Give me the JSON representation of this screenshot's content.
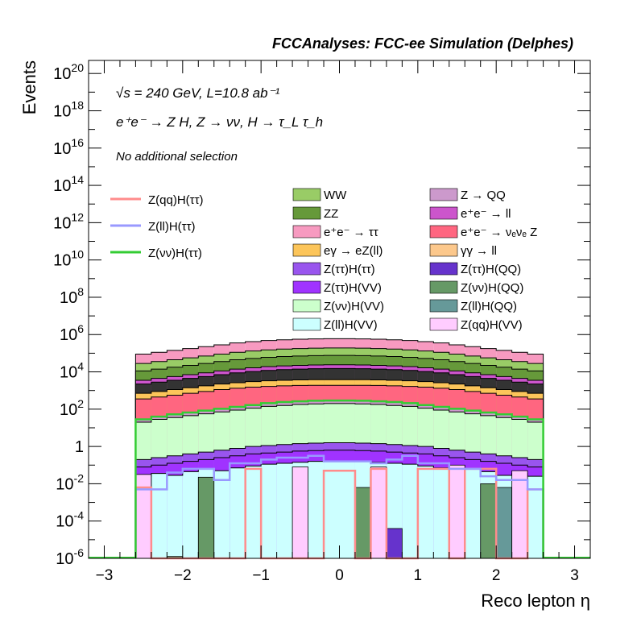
{
  "chart_data": {
    "type": "histogram",
    "title": "FCCAnalyses: FCC-ee Simulation (Delphes)",
    "xlabel": "Reco lepton η",
    "ylabel": "Events",
    "xlim": [
      -3.2,
      3.2
    ],
    "ylim_log10": [
      -6,
      20.7
    ],
    "y_scale": "log",
    "x_ticks": [
      "−3",
      "−2",
      "−1",
      "0",
      "1",
      "2",
      "3"
    ],
    "y_ticks": [
      {
        "base": "10",
        "exp": "20"
      },
      {
        "base": "10",
        "exp": "18"
      },
      {
        "base": "10",
        "exp": "16"
      },
      {
        "base": "10",
        "exp": "14"
      },
      {
        "base": "10",
        "exp": "12"
      },
      {
        "base": "10",
        "exp": "10"
      },
      {
        "base": "10",
        "exp": "8"
      },
      {
        "base": "10",
        "exp": "6"
      },
      {
        "base": "10",
        "exp": "4"
      },
      {
        "base": "10",
        "exp": "2"
      },
      {
        "base": "1",
        "exp": ""
      },
      {
        "base": "10",
        "exp": "-2"
      },
      {
        "base": "10",
        "exp": "-4"
      },
      {
        "base": "10",
        "exp": "-6"
      }
    ],
    "annotations": {
      "energy_lumi": "√s = 240 GeV, L=10.8 ab⁻¹",
      "process": "e⁺e⁻ → Z H, Z → νν, H → τ_L τ_h",
      "selection": "No additional selection"
    },
    "bin_edges_eta": [
      -2.6,
      -2.4,
      -2.2,
      -2.0,
      -1.8,
      -1.6,
      -1.4,
      -1.2,
      -1.0,
      -0.8,
      -0.6,
      -0.4,
      -0.2,
      0.0,
      0.2,
      0.4,
      0.6,
      0.8,
      1.0,
      1.2,
      1.4,
      1.6,
      1.8,
      2.0,
      2.2,
      2.4,
      2.6
    ],
    "stack_totals_log10": [
      [
        4.95,
        5.05,
        5.15,
        5.25,
        5.35,
        5.45,
        5.55,
        5.62,
        5.68,
        5.72,
        5.75,
        5.77,
        5.78,
        5.78,
        5.77,
        5.75,
        5.72,
        5.68,
        5.62,
        5.55,
        5.45,
        5.35,
        5.25,
        5.15,
        5.05,
        4.95
      ],
      [
        4.45,
        4.55,
        4.65,
        4.75,
        4.85,
        4.95,
        5.05,
        5.12,
        5.18,
        5.22,
        5.25,
        5.27,
        5.28,
        5.28,
        5.27,
        5.25,
        5.22,
        5.18,
        5.12,
        5.05,
        4.95,
        4.85,
        4.75,
        4.65,
        4.55,
        4.45
      ],
      [
        4.05,
        4.15,
        4.25,
        4.35,
        4.45,
        4.55,
        4.65,
        4.72,
        4.78,
        4.82,
        4.85,
        4.87,
        4.88,
        4.88,
        4.87,
        4.85,
        4.82,
        4.78,
        4.72,
        4.65,
        4.55,
        4.45,
        4.35,
        4.25,
        4.15,
        4.05
      ],
      [
        3.55,
        3.65,
        3.75,
        3.85,
        3.95,
        4.05,
        4.15,
        4.22,
        4.28,
        4.32,
        4.35,
        4.37,
        4.38,
        4.38,
        4.37,
        4.35,
        4.32,
        4.28,
        4.22,
        4.15,
        4.05,
        3.95,
        3.85,
        3.75,
        3.65,
        3.55
      ],
      [
        3.35,
        3.45,
        3.55,
        3.65,
        3.75,
        3.85,
        3.95,
        4.02,
        4.08,
        4.12,
        4.15,
        4.17,
        4.18,
        4.18,
        4.17,
        4.15,
        4.12,
        4.08,
        4.02,
        3.95,
        3.85,
        3.75,
        3.65,
        3.55,
        3.45,
        3.35
      ],
      [
        2.85,
        2.95,
        3.05,
        3.15,
        3.25,
        3.35,
        3.42,
        3.48,
        3.52,
        3.55,
        3.57,
        3.58,
        3.58,
        3.58,
        3.58,
        3.57,
        3.55,
        3.52,
        3.48,
        3.42,
        3.35,
        3.25,
        3.15,
        3.05,
        2.95,
        2.85
      ],
      [
        2.55,
        2.65,
        2.75,
        2.85,
        2.95,
        3.05,
        3.12,
        3.18,
        3.22,
        3.25,
        3.27,
        3.28,
        3.28,
        3.28,
        3.28,
        3.27,
        3.25,
        3.22,
        3.18,
        3.12,
        3.05,
        2.95,
        2.85,
        2.75,
        2.65,
        2.55
      ],
      [
        1.45,
        1.6,
        1.72,
        1.82,
        1.92,
        2.02,
        2.12,
        2.22,
        2.32,
        2.38,
        2.42,
        2.45,
        2.46,
        2.46,
        2.45,
        2.42,
        2.38,
        2.32,
        2.22,
        2.12,
        2.02,
        1.92,
        1.82,
        1.72,
        1.6,
        1.45
      ],
      [
        1.3,
        1.45,
        1.55,
        1.65,
        1.75,
        1.85,
        1.95,
        2.05,
        2.15,
        2.2,
        2.25,
        2.28,
        2.3,
        2.3,
        2.28,
        2.25,
        2.2,
        2.15,
        2.05,
        1.95,
        1.85,
        1.75,
        1.65,
        1.55,
        1.45,
        1.3
      ],
      [
        -0.7,
        -0.6,
        -0.5,
        -0.4,
        -0.3,
        -0.2,
        -0.1,
        0.0,
        0.05,
        0.1,
        0.15,
        0.18,
        0.2,
        0.2,
        0.18,
        0.15,
        0.1,
        0.05,
        0.0,
        -0.1,
        -0.2,
        -0.3,
        -0.4,
        -0.5,
        -0.6,
        -0.7
      ],
      [
        -1.1,
        -1.0,
        -0.9,
        -0.8,
        -0.7,
        -0.6,
        -0.5,
        -0.4,
        -0.35,
        -0.3,
        -0.25,
        -0.22,
        -0.2,
        -0.2,
        -0.22,
        -0.25,
        -0.3,
        -0.35,
        -0.4,
        -0.5,
        -0.6,
        -0.7,
        -0.8,
        -0.9,
        -1.0,
        -1.1
      ],
      [
        -1.6,
        -1.45,
        -1.55,
        -1.35,
        -1.2,
        -1.3,
        -1.15,
        -1.05,
        -0.95,
        -0.9,
        -0.85,
        -0.8,
        -0.78,
        -0.78,
        -0.8,
        -0.85,
        -0.9,
        -0.95,
        -1.05,
        -1.15,
        -1.3,
        -1.2,
        -1.35,
        -1.55,
        -1.45,
        -1.6
      ]
    ],
    "stack_colors": [
      "#f79ac0",
      "#99cc66",
      "#66993a",
      "#cc55cc",
      "#333333",
      "#fcc55a",
      "#ff6680",
      "#cc99cc",
      "#ccffcc",
      "#9955ee",
      "#a033ff",
      "#ccffff"
    ],
    "overlays": {
      "zqq_h_tautau": [
        -2.2,
        -6.1,
        -6.1,
        -6.1,
        -6.1,
        -6.1,
        -6.1,
        -1.2,
        -6.1,
        -6.1,
        -6.1,
        -6.1,
        -1.3,
        -1.3,
        -6.1,
        -1.2,
        -6.1,
        -6.1,
        -1.2,
        -1.2,
        -6.1,
        -1.2,
        -1.2,
        -6.1,
        -6.1,
        -2.3
      ],
      "zll_h_tautau": [
        -2.3,
        -2.3,
        -1.4,
        -1.2,
        -1.2,
        -1.8,
        -0.9,
        -0.9,
        -0.7,
        -0.6,
        -0.6,
        -0.5,
        -0.8,
        -0.8,
        -0.8,
        -0.9,
        -0.7,
        -0.5,
        -0.9,
        -0.9,
        -1.2,
        -1.2,
        -1.6,
        -1.8,
        -1.8,
        -2.3
      ],
      "zvv_h_tautau": [
        1.45,
        1.6,
        1.72,
        1.82,
        1.92,
        2.02,
        2.12,
        2.22,
        2.32,
        2.38,
        2.42,
        2.45,
        2.46,
        2.46,
        2.45,
        2.42,
        2.38,
        2.32,
        2.22,
        2.12,
        2.02,
        1.92,
        1.82,
        1.72,
        1.6,
        1.45
      ]
    },
    "sparse_bars": {
      "zvv_h_qq": [
        [
          -2.6,
          -2.4,
          -1.6
        ],
        [
          -2.2,
          -2.0,
          -5.9
        ],
        [
          -1.8,
          -1.6,
          -1.65
        ],
        [
          0.2,
          0.4,
          -2.2
        ],
        [
          1.8,
          2.0,
          -2.0
        ]
      ],
      "zll_h_qq": [
        [
          2.0,
          2.2,
          -2.2
        ]
      ],
      "ztautau_h_qq": [
        [
          0.6,
          0.8,
          -4.4
        ]
      ],
      "zqq_h_vv": [
        [
          -2.6,
          -2.4,
          -1.5
        ],
        [
          -0.6,
          -0.4,
          -1.1
        ],
        [
          0.4,
          0.6,
          -1.1
        ],
        [
          1.4,
          1.6,
          -1.0
        ],
        [
          2.2,
          2.4,
          -1.3
        ]
      ]
    },
    "legend_lines": [
      {
        "label": "Z(qq)H(ττ)",
        "color": "#ff8c8c"
      },
      {
        "label": "Z(ll)H(ττ)",
        "color": "#9999ff"
      },
      {
        "label": "Z(νν)H(ττ)",
        "color": "#33cc33"
      }
    ],
    "legend_fill": [
      {
        "label": "WW",
        "color": "#99cc66"
      },
      {
        "label": "Z → QQ",
        "color": "#cc99cc"
      },
      {
        "label": "ZZ",
        "color": "#66993a"
      },
      {
        "label": "e⁺e⁻ → ll",
        "color": "#cc55cc"
      },
      {
        "label": "e⁺e⁻ → ττ",
        "color": "#f79ac0"
      },
      {
        "label": "e⁺e⁻ → νₑνₑ Z",
        "color": "#ff6680"
      },
      {
        "label": "eγ → eZ(ll)",
        "color": "#fcc55a"
      },
      {
        "label": "γγ → ll",
        "color": "#fcc88c"
      },
      {
        "label": "Z(ττ)H(ττ)",
        "color": "#9955ee"
      },
      {
        "label": "Z(ττ)H(QQ)",
        "color": "#6633cc"
      },
      {
        "label": "Z(ττ)H(VV)",
        "color": "#a033ff"
      },
      {
        "label": "Z(νν)H(QQ)",
        "color": "#669966"
      },
      {
        "label": "Z(νν)H(VV)",
        "color": "#ccffcc"
      },
      {
        "label": "Z(ll)H(QQ)",
        "color": "#669999"
      },
      {
        "label": "Z(ll)H(VV)",
        "color": "#ccffff"
      },
      {
        "label": "Z(qq)H(VV)",
        "color": "#ffccff"
      }
    ]
  }
}
